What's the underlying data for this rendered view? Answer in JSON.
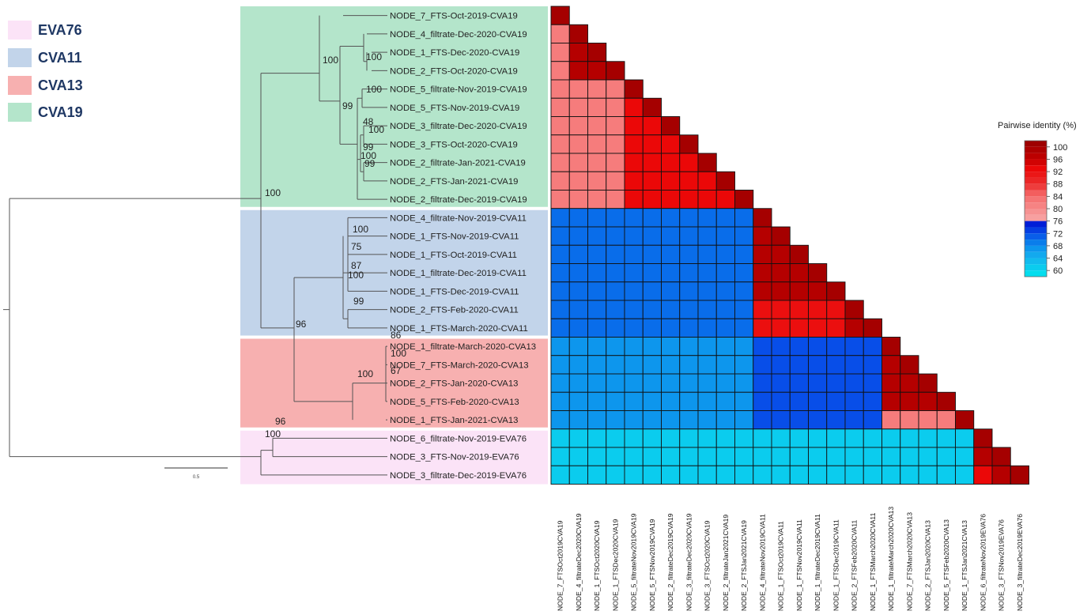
{
  "legend": [
    {
      "label": "EVA76",
      "color": "#fbe3f7"
    },
    {
      "label": "CVA11",
      "color": "#c2d4ea"
    },
    {
      "label": "CVA13",
      "color": "#f7b0b0"
    },
    {
      "label": "CVA19",
      "color": "#b4e5cb"
    }
  ],
  "leaves": [
    "NODE_7_FTS-Oct-2019-CVA19",
    "NODE_4_filtrate-Dec-2020-CVA19",
    "NODE_1_FTS-Dec-2020-CVA19",
    "NODE_2_FTS-Oct-2020-CVA19",
    "NODE_5_filtrate-Nov-2019-CVA19",
    "NODE_5_FTS-Nov-2019-CVA19",
    "NODE_3_filtrate-Dec-2020-CVA19",
    "NODE_3_FTS-Oct-2020-CVA19",
    "NODE_2_filtrate-Jan-2021-CVA19",
    "NODE_2_FTS-Jan-2021-CVA19",
    "NODE_2_filtrate-Dec-2019-CVA19",
    "NODE_4_filtrate-Nov-2019-CVA11",
    "NODE_1_FTS-Nov-2019-CVA11",
    "NODE_1_FTS-Oct-2019-CVA11",
    "NODE_1_filtrate-Dec-2019-CVA11",
    "NODE_1_FTS-Dec-2019-CVA11",
    "NODE_2_FTS-Feb-2020-CVA11",
    "NODE_1_FTS-March-2020-CVA11",
    "NODE_1_filtrate-March-2020-CVA13",
    "NODE_7_FTS-March-2020-CVA13",
    "NODE_2_FTS-Jan-2020-CVA13",
    "NODE_5_FTS-Feb-2020-CVA13",
    "NODE_1_FTS-Jan-2021-CVA13",
    "NODE_6_filtrate-Nov-2019-EVA76",
    "NODE_3_FTS-Nov-2019-EVA76",
    "NODE_3_filtrate-Dec-2019-EVA76"
  ],
  "bootstrap": [
    "100",
    "100",
    "100",
    "99",
    "48",
    "100",
    "99",
    "100",
    "99",
    "100",
    "100",
    "75",
    "87",
    "100",
    "99",
    "96",
    "86",
    "100",
    "67",
    "100",
    "96",
    "100"
  ],
  "scale_label": "0.5",
  "heatmap": {
    "title": "Pairwise identity (%)",
    "scale_ticks": [
      "100",
      "96",
      "92",
      "88",
      "84",
      "80",
      "76",
      "72",
      "68",
      "64",
      "60"
    ],
    "scale_range": [
      58,
      102
    ],
    "column_labels": [
      "NODE_7_FTSOct2019CVA19",
      "NODE_4_filtrateDec2020CVA19",
      "NODE_1_FTSOct2020CVA19",
      "NODE_1_FTSDec2020CVA19",
      "NODE_5_filtrateNov2019CVA19",
      "NODE_5_FTSNov2019CVA19",
      "NODE_2_filtrateDec2019CVA19",
      "NODE_3_filtrateDec2020CVA19",
      "NODE_3_FTSOct2020CVA19",
      "NODE_2_filtrateJan2021CVA19",
      "NODE_2_FTSJan2021CVA19",
      "NODE_4_filtrateNov2019CVA11",
      "NODE_1_FTSOct2019CVA11",
      "NODE_1_FTSNov2019CVA11",
      "NODE_1_filtrateDec2019CVA11",
      "NODE_1_FTSDec2019CVA11",
      "NODE_2_FTSFeb2020CVA11",
      "NODE_1_FTSMarch2020CVA11",
      "NODE_1_filtrateMarch2020CVA13",
      "NODE_7_FTSMarch2020CVA13",
      "NODE_2_FTSJan2020CVA13",
      "NODE_5_FTSFeb2020CVA13",
      "NODE_1_FTSJan2021CVA13",
      "NODE_6_filtrateNov2019EVA76",
      "NODE_3_FTSNov2019EVA76",
      "NODE_3_filtrateDec2019EVA76"
    ],
    "identity": {
      "diagonal": 100,
      "cva19_first_member_vs_rest": 82,
      "cva19_cluster_a": 98,
      "cva19_cluster_a_vs_b": 82,
      "cva19_cluster_b": 93,
      "cva11_core": 98,
      "cva11_core_vs_late": 92,
      "cva11_late": 98,
      "cva13_core": 98,
      "cva13_last_member": 82,
      "cva19_vs_cva11": 70,
      "cva19_vs_cva13": 67,
      "cva11_vs_cva13": 72,
      "cva19_vs_eva76": 61,
      "cva11_vs_eva76": 61,
      "cva13_vs_eva76": 61,
      "eva76_core": 98,
      "eva76_last_member": 93
    }
  }
}
